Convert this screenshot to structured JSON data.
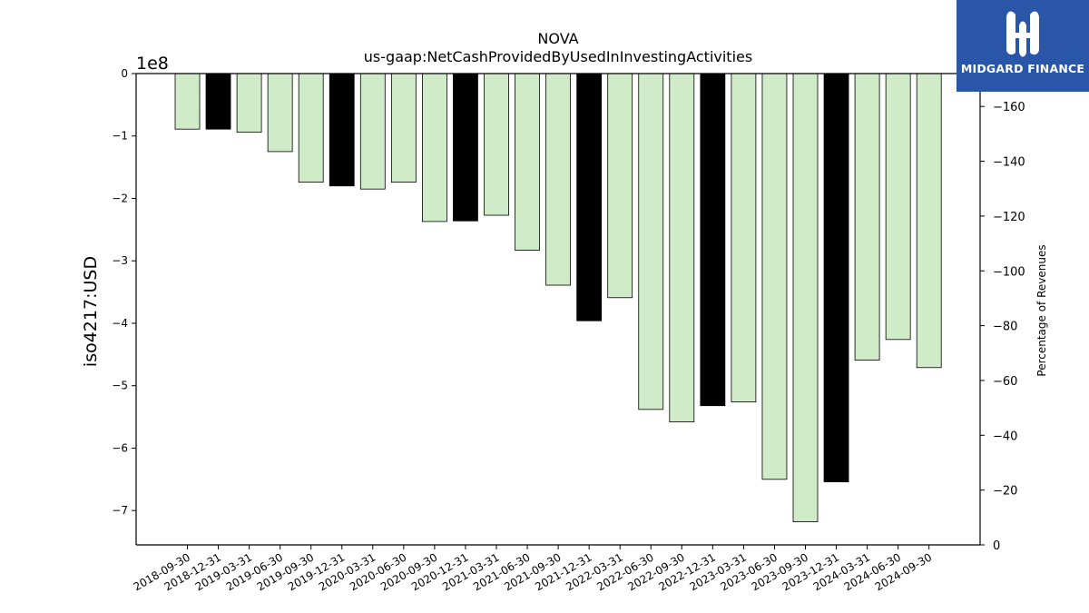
{
  "chart_data": {
    "type": "bar",
    "title": "NOVA",
    "subtitle": "us-gaap:NetCashProvidedByUsedInInvestingActivities",
    "ylabel": "iso4217:USD",
    "y_offset_label": "1e8",
    "right_ylabel": "Percentage of Revenues",
    "ylim": [
      -7.55,
      0
    ],
    "y_ticks": [
      "0",
      "−1",
      "−2",
      "−3",
      "−4",
      "−5",
      "−6",
      "−7"
    ],
    "right_ylim": [
      0,
      172
    ],
    "right_ticks": [
      "0",
      "−20",
      "−40",
      "−60",
      "−80",
      "−100",
      "−120",
      "−140",
      "−160"
    ],
    "categories": [
      "2018-09-30",
      "2018-12-31",
      "2019-03-31",
      "2019-06-30",
      "2019-09-30",
      "2019-12-31",
      "2020-03-31",
      "2020-06-30",
      "2020-09-30",
      "2020-12-31",
      "2021-03-31",
      "2021-06-30",
      "2021-09-30",
      "2021-12-31",
      "2022-03-31",
      "2022-06-30",
      "2022-09-30",
      "2022-12-31",
      "2023-03-31",
      "2023-06-30",
      "2023-09-30",
      "2023-12-31",
      "2024-03-31",
      "2024-06-30",
      "2024-09-30"
    ],
    "values": [
      -0.89,
      -0.89,
      -0.94,
      -1.25,
      -1.74,
      -1.8,
      -1.85,
      -1.74,
      -2.37,
      -2.36,
      -2.27,
      -2.83,
      -3.39,
      -3.96,
      -3.59,
      -5.38,
      -5.58,
      -5.32,
      -5.26,
      -6.5,
      -7.18,
      -6.54,
      -4.59,
      -4.26,
      -4.71
    ],
    "bar_kinds": [
      "quarter",
      "year",
      "quarter",
      "quarter",
      "quarter",
      "year",
      "quarter",
      "quarter",
      "quarter",
      "year",
      "quarter",
      "quarter",
      "quarter",
      "year",
      "quarter",
      "quarter",
      "quarter",
      "year",
      "quarter",
      "quarter",
      "quarter",
      "year",
      "quarter",
      "quarter",
      "quarter"
    ],
    "colors": {
      "quarter": "#d0ebc8",
      "year": "#000000",
      "edge": "#000000"
    },
    "grid": false,
    "legend": "none"
  },
  "logo": {
    "text": "MIDGARD FINANCE",
    "background": "#2a56a8"
  }
}
